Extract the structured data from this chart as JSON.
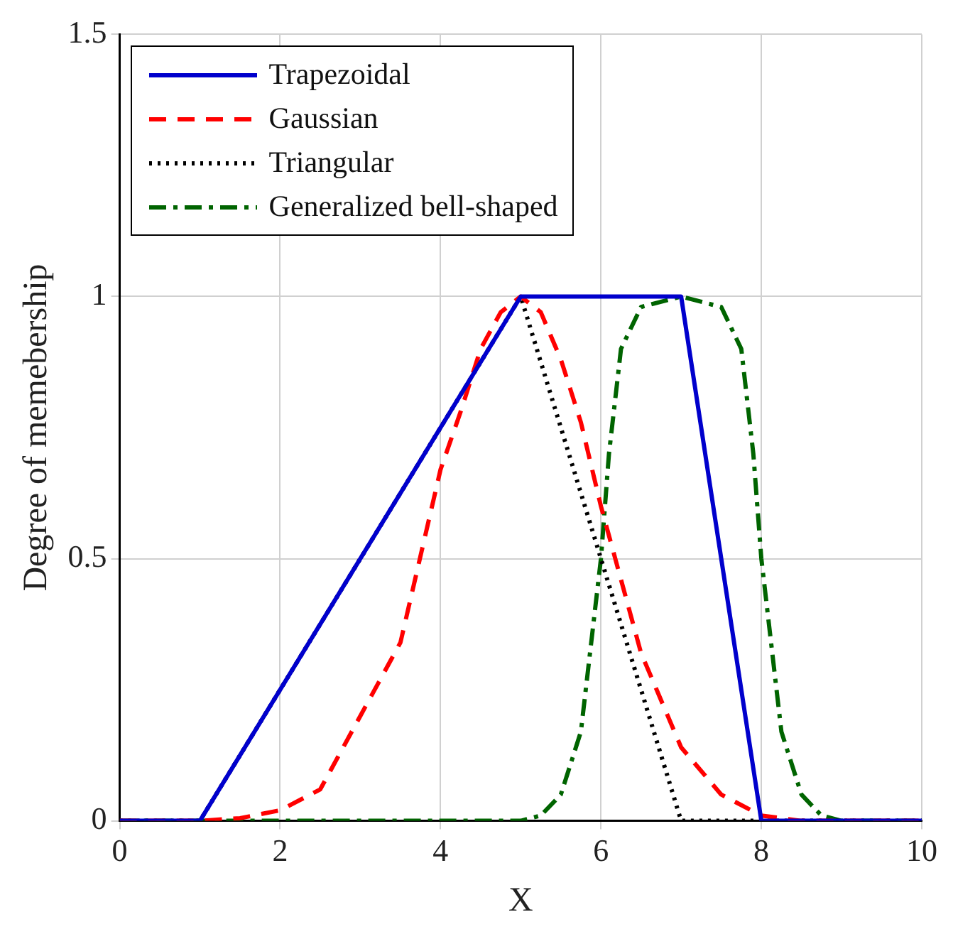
{
  "chart_data": {
    "type": "line",
    "xlabel": "X",
    "ylabel": "Degree of memebership",
    "xlim": [
      0,
      10
    ],
    "ylim": [
      0,
      1.5
    ],
    "xticks": [
      0,
      2,
      4,
      6,
      8,
      10
    ],
    "yticks": [
      0,
      0.5,
      1,
      1.5
    ],
    "grid": true,
    "legend": "top left",
    "marker": "none",
    "series": [
      {
        "name": "Trapezoidal",
        "color": "#0000cc",
        "line_style": "solid",
        "x": [
          0,
          1,
          5,
          7,
          8,
          10
        ],
        "values": [
          0,
          0,
          1,
          1,
          0,
          0
        ]
      },
      {
        "name": "Gaussian",
        "color": "#ff0000",
        "line_style": "dashed",
        "x": [
          0,
          1,
          1.5,
          2,
          2.5,
          3,
          3.5,
          4,
          4.25,
          4.5,
          4.75,
          5,
          5.25,
          5.5,
          5.75,
          6,
          6.25,
          6.5,
          7,
          7.5,
          8,
          8.5,
          9,
          10
        ],
        "values": [
          0,
          0,
          0.005,
          0.02,
          0.06,
          0.2,
          0.34,
          0.67,
          0.78,
          0.9,
          0.97,
          1,
          0.97,
          0.88,
          0.76,
          0.6,
          0.46,
          0.32,
          0.14,
          0.05,
          0.01,
          0,
          0,
          0
        ]
      },
      {
        "name": "Triangular",
        "color": "#000000",
        "line_style": "dotted",
        "x": [
          0,
          1,
          5,
          7,
          10
        ],
        "values": [
          0,
          0,
          1,
          0,
          0
        ]
      },
      {
        "name": "Generalized bell-shaped",
        "color": "#006400",
        "line_style": "dashdot",
        "x": [
          0,
          5,
          5.25,
          5.5,
          5.75,
          6,
          6.1,
          6.25,
          6.5,
          7,
          7.5,
          7.75,
          7.9,
          8,
          8.25,
          8.5,
          8.75,
          9,
          10
        ],
        "values": [
          0,
          0,
          0.01,
          0.05,
          0.17,
          0.5,
          0.7,
          0.9,
          0.98,
          1,
          0.98,
          0.9,
          0.7,
          0.5,
          0.17,
          0.05,
          0.01,
          0,
          0
        ]
      }
    ]
  }
}
